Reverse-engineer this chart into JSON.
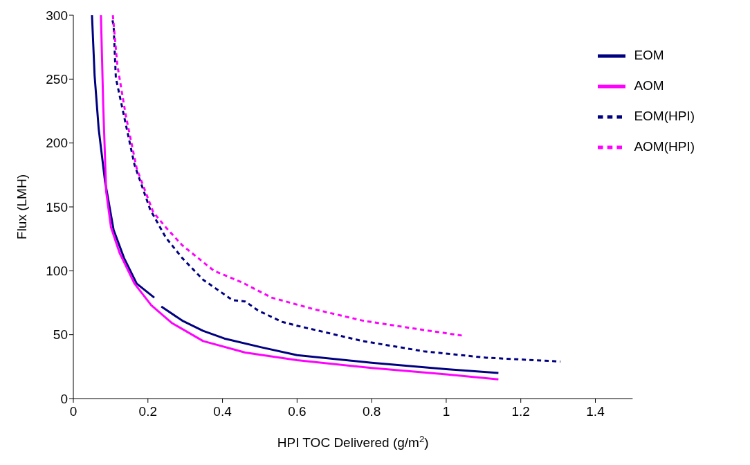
{
  "chart_data": {
    "type": "line",
    "xlabel": "HPI TOC Delivered (g/m$^{2}$)",
    "ylabel": "Flux (LMH)",
    "xlim": [
      0,
      1.5
    ],
    "xticks": [
      0,
      0.2,
      0.4,
      0.6,
      0.8,
      1,
      1.2,
      1.4
    ],
    "ylim": [
      0,
      300
    ],
    "yticks": [
      0,
      50,
      100,
      150,
      200,
      250,
      300
    ],
    "grid": false,
    "legend": "top right",
    "marker": "none",
    "series": [
      {
        "name": "EOM",
        "color": "#000080",
        "line_style": "solid",
        "x": [
          0.05,
          0.057,
          0.068,
          0.085,
          0.108,
          0.136,
          0.17,
          0.217,
          0.226,
          0.236,
          0.292,
          0.348,
          0.405,
          0.506,
          0.6,
          0.8,
          1.0,
          1.14
        ],
        "values": [
          300,
          253,
          211,
          170,
          132,
          110,
          90,
          79,
          null,
          72,
          61,
          53,
          47,
          40,
          34,
          28,
          23,
          20
        ]
      },
      {
        "name": "AOM",
        "color": "#ff00ff",
        "line_style": "solid",
        "x": [
          0.074,
          0.08,
          0.088,
          0.101,
          0.124,
          0.164,
          0.209,
          0.265,
          0.348,
          0.461,
          0.6,
          0.8,
          1.0,
          1.14
        ],
        "values": [
          300,
          231,
          162,
          134,
          114,
          90,
          73,
          59,
          45,
          36,
          30,
          24,
          19,
          15
        ]
      },
      {
        "name": "EOM(HPI)",
        "color": "#000080",
        "line_style": "dashed",
        "x": [
          0.105,
          0.108,
          0.114,
          0.136,
          0.164,
          0.206,
          0.248,
          0.292,
          0.348,
          0.427,
          0.461,
          0.495,
          0.56,
          0.6,
          0.776,
          0.94,
          1.107,
          1.306
        ],
        "values": [
          296,
          292,
          251,
          221,
          183,
          148,
          126,
          110,
          93,
          77,
          76,
          69,
          60,
          57,
          45,
          37,
          32,
          29
        ]
      },
      {
        "name": "AOM(HPI)",
        "color": "#ff00ff",
        "line_style": "dashed",
        "x": [
          0.106,
          0.118,
          0.141,
          0.17,
          0.214,
          0.248,
          0.292,
          0.377,
          0.452,
          0.532,
          0.644,
          0.776,
          0.909,
          1.05
        ],
        "values": [
          300,
          261,
          221,
          180,
          146,
          134,
          120,
          100,
          91,
          79,
          70,
          61,
          55,
          49
        ]
      }
    ]
  }
}
